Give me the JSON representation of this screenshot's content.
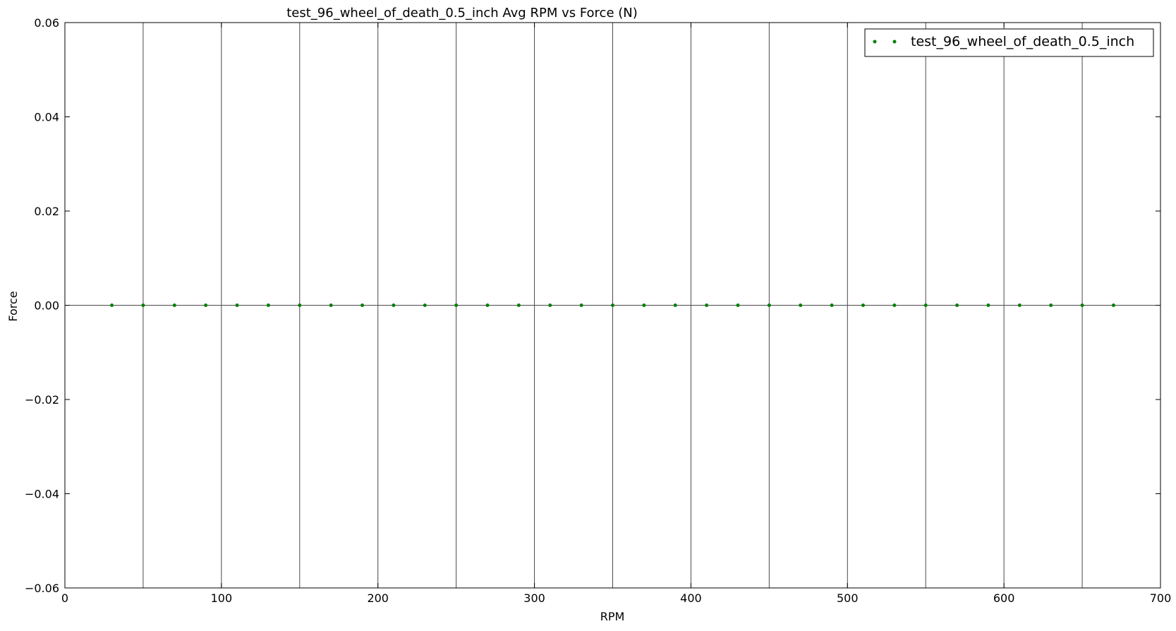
{
  "chart_data": {
    "type": "scatter",
    "title": "test_96_wheel_of_death_0.5_inch Avg RPM vs Force (N)",
    "xlabel": "RPM",
    "ylabel": "Force",
    "xlim": [
      0,
      700
    ],
    "ylim": [
      -0.06,
      0.06
    ],
    "xticks": [
      0,
      100,
      200,
      300,
      400,
      500,
      600,
      700
    ],
    "xtick_labels": [
      "0",
      "100",
      "200",
      "300",
      "400",
      "500",
      "600",
      "700"
    ],
    "yticks": [
      0.06,
      0.04,
      0.02,
      0.0,
      -0.02,
      -0.04,
      -0.06
    ],
    "ytick_labels": [
      "0.06",
      "0.04",
      "0.02",
      "0.00",
      "−0.02",
      "−0.04",
      "−0.06"
    ],
    "vertical_gridlines": [
      50,
      100,
      150,
      200,
      250,
      300,
      350,
      400,
      450,
      500,
      550,
      600,
      650
    ],
    "horizontal_reference_line": 0.0,
    "legend_position": "top-right",
    "series": [
      {
        "name": "test_96_wheel_of_death_0.5_inch",
        "color": "#008000",
        "x": [
          30,
          50,
          70,
          90,
          110,
          130,
          150,
          170,
          190,
          210,
          230,
          250,
          270,
          290,
          310,
          330,
          350,
          370,
          390,
          410,
          430,
          450,
          470,
          490,
          510,
          530,
          550,
          570,
          590,
          610,
          630,
          650,
          670
        ],
        "y": [
          0,
          0,
          0,
          0,
          0,
          0,
          0,
          0,
          0,
          0,
          0,
          0,
          0,
          0,
          0,
          0,
          0,
          0,
          0,
          0,
          0,
          0,
          0,
          0,
          0,
          0,
          0,
          0,
          0,
          0,
          0,
          0,
          0
        ]
      }
    ]
  }
}
